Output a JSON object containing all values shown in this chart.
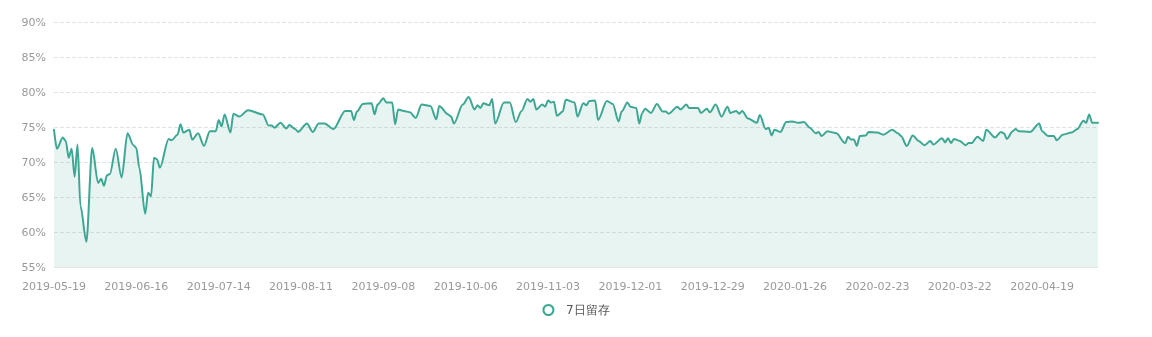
{
  "chart_data": {
    "type": "area",
    "xlim": [
      "2019-05-19",
      "2020-05-08"
    ],
    "xticks": [
      "2019-05-19",
      "2019-06-16",
      "2019-07-14",
      "2019-08-11",
      "2019-09-08",
      "2019-10-06",
      "2019-11-03",
      "2019-12-01",
      "2019-12-29",
      "2020-01-26",
      "2020-02-23",
      "2020-03-22",
      "2020-04-19"
    ],
    "ylim": [
      55,
      90
    ],
    "yticks": [
      {
        "value": 55,
        "label": "55%"
      },
      {
        "value": 60,
        "label": "60%"
      },
      {
        "value": 65,
        "label": "65%"
      },
      {
        "value": 70,
        "label": "70%"
      },
      {
        "value": 75,
        "label": "75%"
      },
      {
        "value": 80,
        "label": "80%"
      },
      {
        "value": 85,
        "label": "85%"
      },
      {
        "value": 90,
        "label": "90%"
      }
    ],
    "grid": "y",
    "legend": "bottom",
    "line_style": "solid",
    "x": [
      "2019-05-19",
      "2019-05-20",
      "2019-05-22",
      "2019-05-23",
      "2019-05-24",
      "2019-05-25",
      "2019-05-26",
      "2019-05-27",
      "2019-05-28",
      "2019-05-30",
      "2019-06-01",
      "2019-06-03",
      "2019-06-04",
      "2019-06-05",
      "2019-06-06",
      "2019-06-07",
      "2019-06-09",
      "2019-06-11",
      "2019-06-13",
      "2019-06-15",
      "2019-06-16",
      "2019-06-17",
      "2019-06-19",
      "2019-06-20",
      "2019-06-21",
      "2019-06-22",
      "2019-06-23",
      "2019-06-24",
      "2019-06-27",
      "2019-06-28",
      "2019-06-30",
      "2019-07-01",
      "2019-07-02",
      "2019-07-04",
      "2019-07-05",
      "2019-07-07",
      "2019-07-09",
      "2019-07-11",
      "2019-07-13",
      "2019-07-14",
      "2019-07-15",
      "2019-07-16",
      "2019-07-18",
      "2019-07-19",
      "2019-07-21",
      "2019-07-24",
      "2019-07-29",
      "2019-07-31",
      "2019-08-01",
      "2019-08-02",
      "2019-08-04",
      "2019-08-06",
      "2019-08-07",
      "2019-08-09",
      "2019-08-10",
      "2019-08-13",
      "2019-08-15",
      "2019-08-17",
      "2019-08-19",
      "2019-08-22",
      "2019-08-26",
      "2019-08-28",
      "2019-08-29",
      "2019-08-30",
      "2019-09-01",
      "2019-09-04",
      "2019-09-05",
      "2019-09-06",
      "2019-09-08",
      "2019-09-09",
      "2019-09-11",
      "2019-09-12",
      "2019-09-13",
      "2019-09-15",
      "2019-09-17",
      "2019-09-19",
      "2019-09-21",
      "2019-09-24",
      "2019-09-26",
      "2019-09-27",
      "2019-09-30",
      "2019-10-01",
      "2019-10-02",
      "2019-10-05",
      "2019-10-07",
      "2019-10-09",
      "2019-10-10",
      "2019-10-11",
      "2019-10-12",
      "2019-10-14",
      "2019-10-15",
      "2019-10-16",
      "2019-10-19",
      "2019-10-21",
      "2019-10-23",
      "2019-10-25",
      "2019-10-27",
      "2019-10-28",
      "2019-10-29",
      "2019-10-30",
      "2019-11-01",
      "2019-11-02",
      "2019-11-03",
      "2019-11-04",
      "2019-11-05",
      "2019-11-06",
      "2019-11-08",
      "2019-11-09",
      "2019-11-12",
      "2019-11-13",
      "2019-11-15",
      "2019-11-16",
      "2019-11-17",
      "2019-11-19",
      "2019-11-20",
      "2019-11-23",
      "2019-11-25",
      "2019-11-27",
      "2019-11-28",
      "2019-11-30",
      "2019-12-01",
      "2019-12-03",
      "2019-12-04",
      "2019-12-05",
      "2019-12-06",
      "2019-12-08",
      "2019-12-10",
      "2019-12-12",
      "2019-12-13",
      "2019-12-14",
      "2019-12-17",
      "2019-12-18",
      "2019-12-20",
      "2019-12-21",
      "2019-12-24",
      "2019-12-25",
      "2019-12-27",
      "2019-12-28",
      "2019-12-30",
      "2020-01-01",
      "2020-01-03",
      "2020-01-04",
      "2020-01-06",
      "2020-01-07",
      "2020-01-08",
      "2020-01-10",
      "2020-01-13",
      "2020-01-14",
      "2020-01-16",
      "2020-01-17",
      "2020-01-18",
      "2020-01-19",
      "2020-01-21",
      "2020-01-23",
      "2020-01-25",
      "2020-01-27",
      "2020-01-29",
      "2020-01-31",
      "2020-02-02",
      "2020-02-03",
      "2020-02-04",
      "2020-02-06",
      "2020-02-08",
      "2020-02-09",
      "2020-02-12",
      "2020-02-13",
      "2020-02-14",
      "2020-02-15",
      "2020-02-16",
      "2020-02-17",
      "2020-02-19",
      "2020-02-20",
      "2020-02-23",
      "2020-02-25",
      "2020-02-28",
      "2020-03-01",
      "2020-03-02",
      "2020-03-04",
      "2020-03-06",
      "2020-03-08",
      "2020-03-10",
      "2020-03-12",
      "2020-03-13",
      "2020-03-16",
      "2020-03-17",
      "2020-03-18",
      "2020-03-19",
      "2020-03-20",
      "2020-03-22",
      "2020-03-24",
      "2020-03-25",
      "2020-03-26",
      "2020-03-28",
      "2020-03-30",
      "2020-03-31",
      "2020-04-03",
      "2020-04-05",
      "2020-04-06",
      "2020-04-07",
      "2020-04-09",
      "2020-04-10",
      "2020-04-11",
      "2020-04-15",
      "2020-04-18",
      "2020-04-19",
      "2020-04-21",
      "2020-04-23",
      "2020-04-24",
      "2020-04-26",
      "2020-04-29",
      "2020-05-01",
      "2020-05-03",
      "2020-05-04",
      "2020-05-05",
      "2020-05-06",
      "2020-05-08"
    ],
    "series": [
      {
        "name": "7日留存",
        "color": "#3ea794",
        "values": [
          74.6,
          71.9,
          73.5,
          73.0,
          70.6,
          71.9,
          67.9,
          72.5,
          63.7,
          58.6,
          72.0,
          67.0,
          67.6,
          66.6,
          68.1,
          68.3,
          71.9,
          67.8,
          74.1,
          72.4,
          72.0,
          69.2,
          62.6,
          65.6,
          65.1,
          70.6,
          70.4,
          69.2,
          73.3,
          73.1,
          73.9,
          75.4,
          74.2,
          74.6,
          73.2,
          74.1,
          72.3,
          74.4,
          74.4,
          76.0,
          75.1,
          76.8,
          74.2,
          76.9,
          76.5,
          77.4,
          76.8,
          75.2,
          75.2,
          74.9,
          75.6,
          74.8,
          75.3,
          74.7,
          74.3,
          75.5,
          74.3,
          75.5,
          75.5,
          74.7,
          77.3,
          77.3,
          76.0,
          77.2,
          78.3,
          78.4,
          76.8,
          78.2,
          79.1,
          78.5,
          78.5,
          75.4,
          77.5,
          77.3,
          77.1,
          76.3,
          78.2,
          78.0,
          76.1,
          78.0,
          76.8,
          76.5,
          75.5,
          78.2,
          79.3,
          77.5,
          78.1,
          77.7,
          78.4,
          78.1,
          79.0,
          75.5,
          78.5,
          78.5,
          75.7,
          77.3,
          79.0,
          78.6,
          79.0,
          77.5,
          78.2,
          77.9,
          78.8,
          78.5,
          78.6,
          76.6,
          77.2,
          78.9,
          78.5,
          76.5,
          78.4,
          78.1,
          78.7,
          78.8,
          76.0,
          78.7,
          78.3,
          75.8,
          77.2,
          78.5,
          77.9,
          77.7,
          75.5,
          77.0,
          77.6,
          77.0,
          78.3,
          77.2,
          77.2,
          76.9,
          77.9,
          77.5,
          78.2,
          77.7,
          77.7,
          77.0,
          77.6,
          77.1,
          78.2,
          76.5,
          77.9,
          77.0,
          77.3,
          76.9,
          77.3,
          76.2,
          75.6,
          76.7,
          74.7,
          74.9,
          73.8,
          74.6,
          74.3,
          75.7,
          75.8,
          75.6,
          75.7,
          74.9,
          74.1,
          74.3,
          73.7,
          74.4,
          74.2,
          74.1,
          72.7,
          73.6,
          73.2,
          73.2,
          72.3,
          73.7,
          73.8,
          74.3,
          74.2,
          73.9,
          74.6,
          74.1,
          73.7,
          72.3,
          73.8,
          73.0,
          72.4,
          73.0,
          72.5,
          73.4,
          72.8,
          73.4,
          72.7,
          73.3,
          73.0,
          72.4,
          72.7,
          72.7,
          73.6,
          73.0,
          74.6,
          73.5,
          74.3,
          74.1,
          73.3,
          74.4,
          74.7,
          74.4,
          74.3,
          75.5,
          74.4,
          73.7,
          73.7,
          73.1,
          73.9,
          74.2,
          74.7,
          75.9,
          75.6,
          76.8,
          75.6,
          75.6
        ]
      }
    ]
  }
}
